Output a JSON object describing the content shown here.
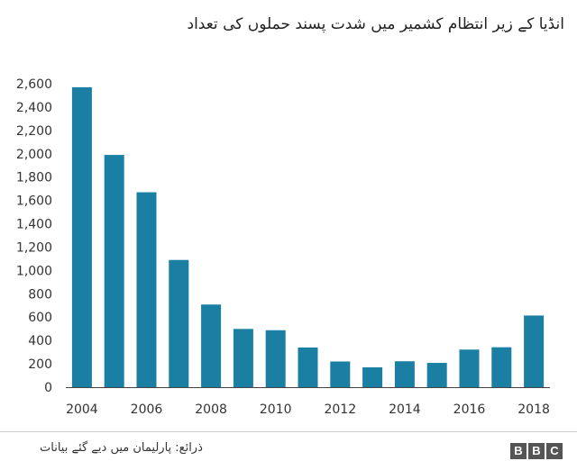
{
  "chart_data": {
    "type": "bar",
    "title": "انڈیا کے زیر انتظام کشمیر میں شدت پسند حملوں کی تعداد",
    "categories": [
      "2004",
      "2005",
      "2006",
      "2007",
      "2008",
      "2009",
      "2010",
      "2011",
      "2012",
      "2013",
      "2014",
      "2015",
      "2016",
      "2017",
      "2018"
    ],
    "x_tick_labels": [
      "2004",
      "2006",
      "2008",
      "2010",
      "2012",
      "2014",
      "2016",
      "2018"
    ],
    "values": [
      2570,
      1990,
      1670,
      1090,
      708,
      499,
      488,
      340,
      220,
      170,
      222,
      208,
      322,
      342,
      614
    ],
    "ylim": [
      0,
      2600
    ],
    "y_ticks": [
      0,
      200,
      400,
      600,
      800,
      1000,
      1200,
      1400,
      1600,
      1800,
      2000,
      2200,
      2400,
      2600
    ],
    "y_tick_labels": [
      "0",
      "200",
      "400",
      "600",
      "800",
      "1,000",
      "1,200",
      "1,400",
      "1,600",
      "1,800",
      "2,000",
      "2,200",
      "2,400",
      "2,600"
    ],
    "xlabel": "",
    "ylabel": "",
    "grid": false,
    "bar_color": "#1a7fa3"
  },
  "footer": {
    "source": "ذرائع: پارلیمان میں دیے گئے بیانات",
    "logo": [
      "B",
      "B",
      "C"
    ]
  }
}
